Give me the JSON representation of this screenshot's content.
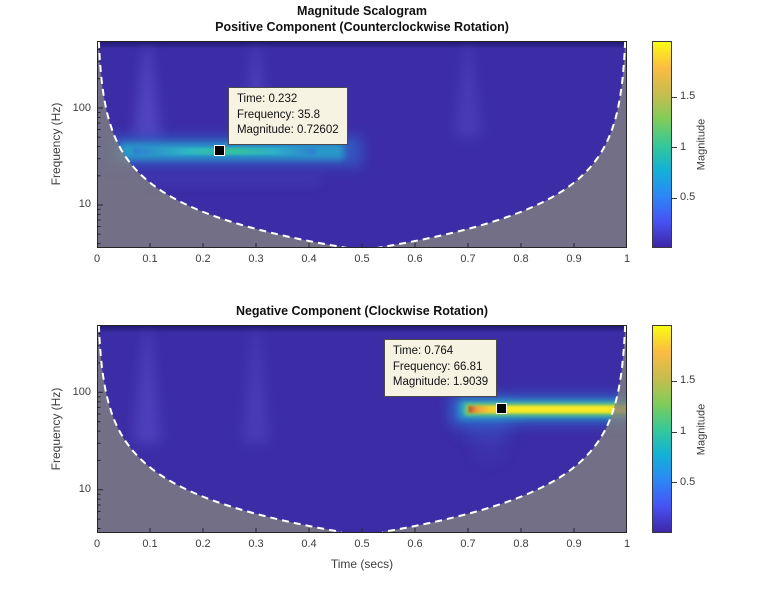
{
  "figure": {
    "title": "Magnitude Scalogram"
  },
  "colors": {
    "background": "#ffffff",
    "heatmap_low": "#3c2da6",
    "coi_gray": "rgba(128,128,128,0.80)",
    "coi_dash": "#ffffff",
    "axis": "#262626",
    "datatip_bg": "#f6f3e3",
    "parula_stops": [
      "#3e26a8",
      "#4852f4",
      "#2d87f7",
      "#12b1d6",
      "#37c897",
      "#81cc59",
      "#c9bc4e",
      "#fbbc41",
      "#f9fb14"
    ]
  },
  "chart_data": [
    {
      "type": "heatmap",
      "title": "Positive Component (Counterclockwise Rotation)",
      "ylabel": "Frequency (Hz)",
      "xlabel": "",
      "x_ticks": [
        0,
        0.1,
        0.2,
        0.3,
        0.4,
        0.5,
        0.6,
        0.7,
        0.8,
        0.9,
        1
      ],
      "xlim": [
        0,
        1
      ],
      "y_scale": "log",
      "y_ticks": [
        10,
        100
      ],
      "ylim": [
        3.6,
        491
      ],
      "grid": false,
      "colorbar": {
        "label": "Magnitude",
        "ticks": [
          0.5,
          1,
          1.5
        ],
        "range": [
          0,
          2.05
        ]
      },
      "ridge": {
        "frequency": 35.8,
        "time_start": 0.02,
        "time_end": 0.5,
        "peak_magnitude": 0.95,
        "scheme": "cyan"
      },
      "echo": {
        "frequency": 18.5,
        "time_start": 0.08,
        "time_end": 0.42
      },
      "plumes": [
        {
          "time": 0.095,
          "strength": 0.5
        },
        {
          "time": 0.3,
          "strength": 0.38
        },
        {
          "time": 0.7,
          "strength": 0.3
        }
      ],
      "coi_edge_time_at_min_freq": 0.472,
      "datatip": {
        "lines": [
          "Time: 0.232",
          "Frequency: 35.8",
          "Magnitude: 0.72602"
        ],
        "time": 0.232,
        "frequency": 35.8,
        "magnitude": 0.72602,
        "placement": "upper-right"
      }
    },
    {
      "type": "heatmap",
      "title": "Negative Component (Clockwise Rotation)",
      "ylabel": "Frequency (Hz)",
      "xlabel": "Time (secs)",
      "x_ticks": [
        0,
        0.1,
        0.2,
        0.3,
        0.4,
        0.5,
        0.6,
        0.7,
        0.8,
        0.9,
        1
      ],
      "xlim": [
        0,
        1
      ],
      "y_scale": "log",
      "y_ticks": [
        10,
        100
      ],
      "ylim": [
        3.6,
        491
      ],
      "grid": false,
      "colorbar": {
        "label": "Magnitude",
        "ticks": [
          0.5,
          1,
          1.5
        ],
        "range": [
          0,
          2.05
        ]
      },
      "ridge": {
        "frequency": 66.81,
        "time_start": 0.68,
        "time_end": 1.0,
        "peak_magnitude": 1.95,
        "scheme": "yellow"
      },
      "plumes": [
        {
          "time": 0.095,
          "strength": 0.4
        },
        {
          "time": 0.3,
          "strength": 0.3
        }
      ],
      "coi_edge_time_at_min_freq": 0.472,
      "datatip": {
        "lines": [
          "Time: 0.764",
          "Frequency: 66.81",
          "Magnitude: 1.9039"
        ],
        "time": 0.764,
        "frequency": 66.81,
        "magnitude": 1.9039,
        "placement": "upper-left"
      }
    }
  ]
}
